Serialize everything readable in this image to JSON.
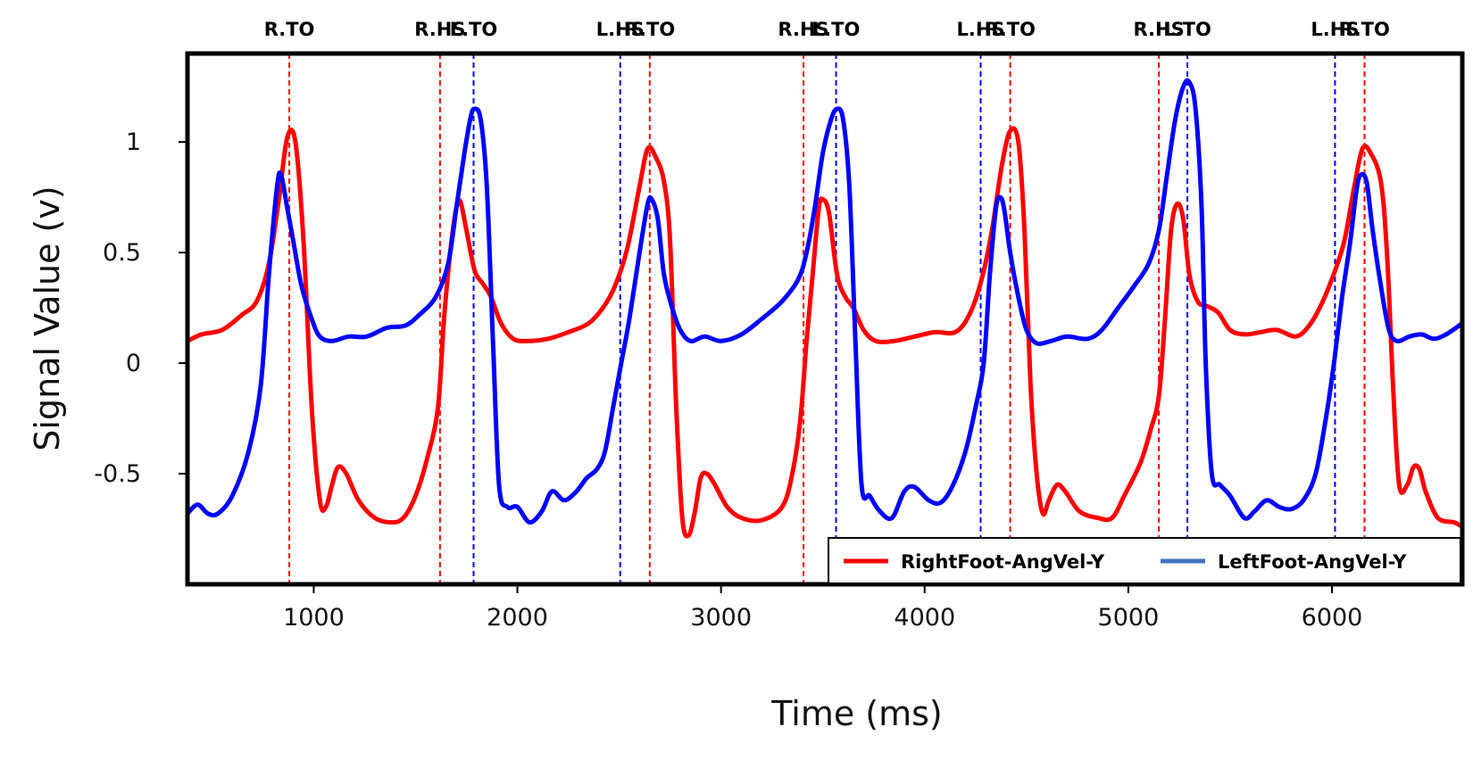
{
  "chart_data": {
    "type": "line",
    "title": "",
    "xlabel": "Time (ms)",
    "ylabel": "Signal Value (v)",
    "xlim": [
      380,
      6640
    ],
    "ylim": [
      -1.0,
      1.4
    ],
    "xticks": [
      1000,
      2000,
      3000,
      4000,
      5000,
      6000
    ],
    "yticks": [
      1,
      0.5,
      0,
      -0.5
    ],
    "ytick_labels": [
      "1",
      "0.5",
      "0",
      "-0.5"
    ],
    "grid": false,
    "legend_position": "bottom-right",
    "series": [
      {
        "name": "RightFoot-AngVel-Y",
        "color": "#ff0000",
        "points": [
          [
            380,
            0.1
          ],
          [
            450,
            0.13
          ],
          [
            550,
            0.15
          ],
          [
            650,
            0.22
          ],
          [
            720,
            0.28
          ],
          [
            780,
            0.45
          ],
          [
            830,
            0.75
          ],
          [
            870,
            1.02
          ],
          [
            910,
            1.0
          ],
          [
            950,
            0.55
          ],
          [
            990,
            -0.2
          ],
          [
            1030,
            -0.62
          ],
          [
            1060,
            -0.65
          ],
          [
            1090,
            -0.55
          ],
          [
            1120,
            -0.47
          ],
          [
            1160,
            -0.5
          ],
          [
            1220,
            -0.62
          ],
          [
            1300,
            -0.7
          ],
          [
            1380,
            -0.72
          ],
          [
            1440,
            -0.7
          ],
          [
            1500,
            -0.6
          ],
          [
            1560,
            -0.42
          ],
          [
            1610,
            -0.2
          ],
          [
            1640,
            0.2
          ],
          [
            1670,
            0.5
          ],
          [
            1700,
            0.7
          ],
          [
            1720,
            0.73
          ],
          [
            1750,
            0.6
          ],
          [
            1790,
            0.42
          ],
          [
            1830,
            0.36
          ],
          [
            1870,
            0.3
          ],
          [
            1920,
            0.18
          ],
          [
            1980,
            0.11
          ],
          [
            2050,
            0.1
          ],
          [
            2150,
            0.11
          ],
          [
            2250,
            0.14
          ],
          [
            2350,
            0.18
          ],
          [
            2420,
            0.25
          ],
          [
            2480,
            0.35
          ],
          [
            2540,
            0.52
          ],
          [
            2600,
            0.8
          ],
          [
            2640,
            0.97
          ],
          [
            2680,
            0.93
          ],
          [
            2720,
            0.82
          ],
          [
            2750,
            0.55
          ],
          [
            2780,
            -0.2
          ],
          [
            2810,
            -0.7
          ],
          [
            2840,
            -0.78
          ],
          [
            2870,
            -0.68
          ],
          [
            2900,
            -0.52
          ],
          [
            2930,
            -0.5
          ],
          [
            2970,
            -0.55
          ],
          [
            3030,
            -0.65
          ],
          [
            3100,
            -0.7
          ],
          [
            3200,
            -0.71
          ],
          [
            3300,
            -0.65
          ],
          [
            3350,
            -0.5
          ],
          [
            3390,
            -0.25
          ],
          [
            3420,
            0.1
          ],
          [
            3450,
            0.4
          ],
          [
            3480,
            0.7
          ],
          [
            3500,
            0.74
          ],
          [
            3530,
            0.68
          ],
          [
            3570,
            0.4
          ],
          [
            3610,
            0.3
          ],
          [
            3650,
            0.25
          ],
          [
            3700,
            0.15
          ],
          [
            3760,
            0.1
          ],
          [
            3850,
            0.1
          ],
          [
            3950,
            0.12
          ],
          [
            4050,
            0.14
          ],
          [
            4150,
            0.14
          ],
          [
            4220,
            0.22
          ],
          [
            4280,
            0.38
          ],
          [
            4330,
            0.6
          ],
          [
            4380,
            0.9
          ],
          [
            4420,
            1.05
          ],
          [
            4460,
            1.0
          ],
          [
            4490,
            0.6
          ],
          [
            4520,
            -0.1
          ],
          [
            4550,
            -0.5
          ],
          [
            4580,
            -0.68
          ],
          [
            4610,
            -0.62
          ],
          [
            4650,
            -0.55
          ],
          [
            4690,
            -0.58
          ],
          [
            4760,
            -0.67
          ],
          [
            4850,
            -0.7
          ],
          [
            4920,
            -0.7
          ],
          [
            4980,
            -0.6
          ],
          [
            5060,
            -0.45
          ],
          [
            5110,
            -0.3
          ],
          [
            5150,
            -0.15
          ],
          [
            5180,
            0.2
          ],
          [
            5210,
            0.6
          ],
          [
            5240,
            0.72
          ],
          [
            5270,
            0.65
          ],
          [
            5300,
            0.4
          ],
          [
            5340,
            0.28
          ],
          [
            5380,
            0.26
          ],
          [
            5440,
            0.23
          ],
          [
            5500,
            0.15
          ],
          [
            5570,
            0.13
          ],
          [
            5650,
            0.14
          ],
          [
            5730,
            0.15
          ],
          [
            5820,
            0.12
          ],
          [
            5880,
            0.16
          ],
          [
            5940,
            0.25
          ],
          [
            6000,
            0.38
          ],
          [
            6060,
            0.55
          ],
          [
            6110,
            0.8
          ],
          [
            6150,
            0.97
          ],
          [
            6190,
            0.95
          ],
          [
            6240,
            0.82
          ],
          [
            6270,
            0.5
          ],
          [
            6300,
            -0.1
          ],
          [
            6330,
            -0.55
          ],
          [
            6370,
            -0.55
          ],
          [
            6400,
            -0.47
          ],
          [
            6430,
            -0.48
          ],
          [
            6460,
            -0.58
          ],
          [
            6520,
            -0.7
          ],
          [
            6600,
            -0.72
          ],
          [
            6640,
            -0.74
          ]
        ]
      },
      {
        "name": "LeftFoot-AngVel-Y",
        "color": "#0000ff",
        "points": [
          [
            380,
            -0.68
          ],
          [
            430,
            -0.64
          ],
          [
            480,
            -0.68
          ],
          [
            530,
            -0.68
          ],
          [
            600,
            -0.6
          ],
          [
            680,
            -0.4
          ],
          [
            740,
            -0.1
          ],
          [
            780,
            0.4
          ],
          [
            820,
            0.8
          ],
          [
            840,
            0.85
          ],
          [
            870,
            0.7
          ],
          [
            900,
            0.55
          ],
          [
            940,
            0.35
          ],
          [
            990,
            0.2
          ],
          [
            1030,
            0.12
          ],
          [
            1090,
            0.1
          ],
          [
            1170,
            0.12
          ],
          [
            1260,
            0.12
          ],
          [
            1360,
            0.16
          ],
          [
            1450,
            0.17
          ],
          [
            1520,
            0.22
          ],
          [
            1600,
            0.3
          ],
          [
            1660,
            0.45
          ],
          [
            1700,
            0.7
          ],
          [
            1740,
            0.95
          ],
          [
            1770,
            1.11
          ],
          [
            1790,
            1.15
          ],
          [
            1820,
            1.1
          ],
          [
            1850,
            0.8
          ],
          [
            1880,
            0.1
          ],
          [
            1910,
            -0.55
          ],
          [
            1950,
            -0.65
          ],
          [
            2000,
            -0.65
          ],
          [
            2060,
            -0.72
          ],
          [
            2120,
            -0.67
          ],
          [
            2170,
            -0.58
          ],
          [
            2230,
            -0.62
          ],
          [
            2290,
            -0.58
          ],
          [
            2340,
            -0.52
          ],
          [
            2390,
            -0.48
          ],
          [
            2430,
            -0.4
          ],
          [
            2470,
            -0.2
          ],
          [
            2510,
            0.0
          ],
          [
            2550,
            0.2
          ],
          [
            2600,
            0.5
          ],
          [
            2640,
            0.72
          ],
          [
            2660,
            0.74
          ],
          [
            2690,
            0.65
          ],
          [
            2720,
            0.4
          ],
          [
            2760,
            0.25
          ],
          [
            2800,
            0.15
          ],
          [
            2850,
            0.1
          ],
          [
            2920,
            0.12
          ],
          [
            3000,
            0.1
          ],
          [
            3100,
            0.13
          ],
          [
            3200,
            0.2
          ],
          [
            3300,
            0.28
          ],
          [
            3380,
            0.38
          ],
          [
            3420,
            0.5
          ],
          [
            3460,
            0.7
          ],
          [
            3500,
            0.95
          ],
          [
            3540,
            1.1
          ],
          [
            3570,
            1.15
          ],
          [
            3600,
            1.1
          ],
          [
            3630,
            0.8
          ],
          [
            3660,
            0.1
          ],
          [
            3690,
            -0.55
          ],
          [
            3730,
            -0.6
          ],
          [
            3780,
            -0.67
          ],
          [
            3840,
            -0.7
          ],
          [
            3900,
            -0.58
          ],
          [
            3950,
            -0.56
          ],
          [
            4020,
            -0.62
          ],
          [
            4080,
            -0.63
          ],
          [
            4140,
            -0.55
          ],
          [
            4200,
            -0.4
          ],
          [
            4250,
            -0.2
          ],
          [
            4290,
            0.0
          ],
          [
            4320,
            0.4
          ],
          [
            4350,
            0.7
          ],
          [
            4370,
            0.75
          ],
          [
            4390,
            0.7
          ],
          [
            4420,
            0.5
          ],
          [
            4460,
            0.3
          ],
          [
            4500,
            0.15
          ],
          [
            4550,
            0.09
          ],
          [
            4620,
            0.1
          ],
          [
            4700,
            0.12
          ],
          [
            4800,
            0.11
          ],
          [
            4870,
            0.15
          ],
          [
            4950,
            0.25
          ],
          [
            5030,
            0.35
          ],
          [
            5100,
            0.45
          ],
          [
            5150,
            0.6
          ],
          [
            5190,
            0.85
          ],
          [
            5230,
            1.1
          ],
          [
            5270,
            1.25
          ],
          [
            5300,
            1.27
          ],
          [
            5330,
            1.15
          ],
          [
            5360,
            0.7
          ],
          [
            5380,
            0.0
          ],
          [
            5410,
            -0.5
          ],
          [
            5450,
            -0.55
          ],
          [
            5500,
            -0.6
          ],
          [
            5570,
            -0.7
          ],
          [
            5620,
            -0.67
          ],
          [
            5680,
            -0.62
          ],
          [
            5740,
            -0.65
          ],
          [
            5800,
            -0.66
          ],
          [
            5860,
            -0.62
          ],
          [
            5920,
            -0.5
          ],
          [
            5970,
            -0.25
          ],
          [
            6010,
            0.0
          ],
          [
            6050,
            0.3
          ],
          [
            6090,
            0.55
          ],
          [
            6120,
            0.78
          ],
          [
            6140,
            0.85
          ],
          [
            6170,
            0.82
          ],
          [
            6200,
            0.6
          ],
          [
            6240,
            0.35
          ],
          [
            6280,
            0.15
          ],
          [
            6320,
            0.1
          ],
          [
            6380,
            0.12
          ],
          [
            6440,
            0.13
          ],
          [
            6500,
            0.11
          ],
          [
            6560,
            0.13
          ],
          [
            6640,
            0.18
          ]
        ]
      }
    ],
    "events": [
      {
        "label": "R.TO",
        "x": 880,
        "color": "#ff0000"
      },
      {
        "label": "R.HS",
        "x": 1620,
        "color": "#ff0000"
      },
      {
        "label": "L.TO",
        "x": 1785,
        "color": "#0000ff"
      },
      {
        "label": "L.HS",
        "x": 2505,
        "color": "#0000ff"
      },
      {
        "label": "R.TO",
        "x": 2650,
        "color": "#ff0000"
      },
      {
        "label": "R.HS",
        "x": 3405,
        "color": "#ff0000"
      },
      {
        "label": "L.TO",
        "x": 3565,
        "color": "#0000ff"
      },
      {
        "label": "L.HS",
        "x": 4275,
        "color": "#0000ff"
      },
      {
        "label": "R.TO",
        "x": 4420,
        "color": "#ff0000"
      },
      {
        "label": "R.HS",
        "x": 5150,
        "color": "#ff0000"
      },
      {
        "label": "L.TO",
        "x": 5290,
        "color": "#0000ff"
      },
      {
        "label": "L.HS",
        "x": 6015,
        "color": "#0000ff"
      },
      {
        "label": "R.TO",
        "x": 6160,
        "color": "#ff0000"
      }
    ],
    "legend": [
      {
        "label": "RightFoot-AngVel-Y",
        "color": "#ff0000"
      },
      {
        "label": "LeftFoot-AngVel-Y",
        "color": "#4472c4"
      }
    ]
  }
}
